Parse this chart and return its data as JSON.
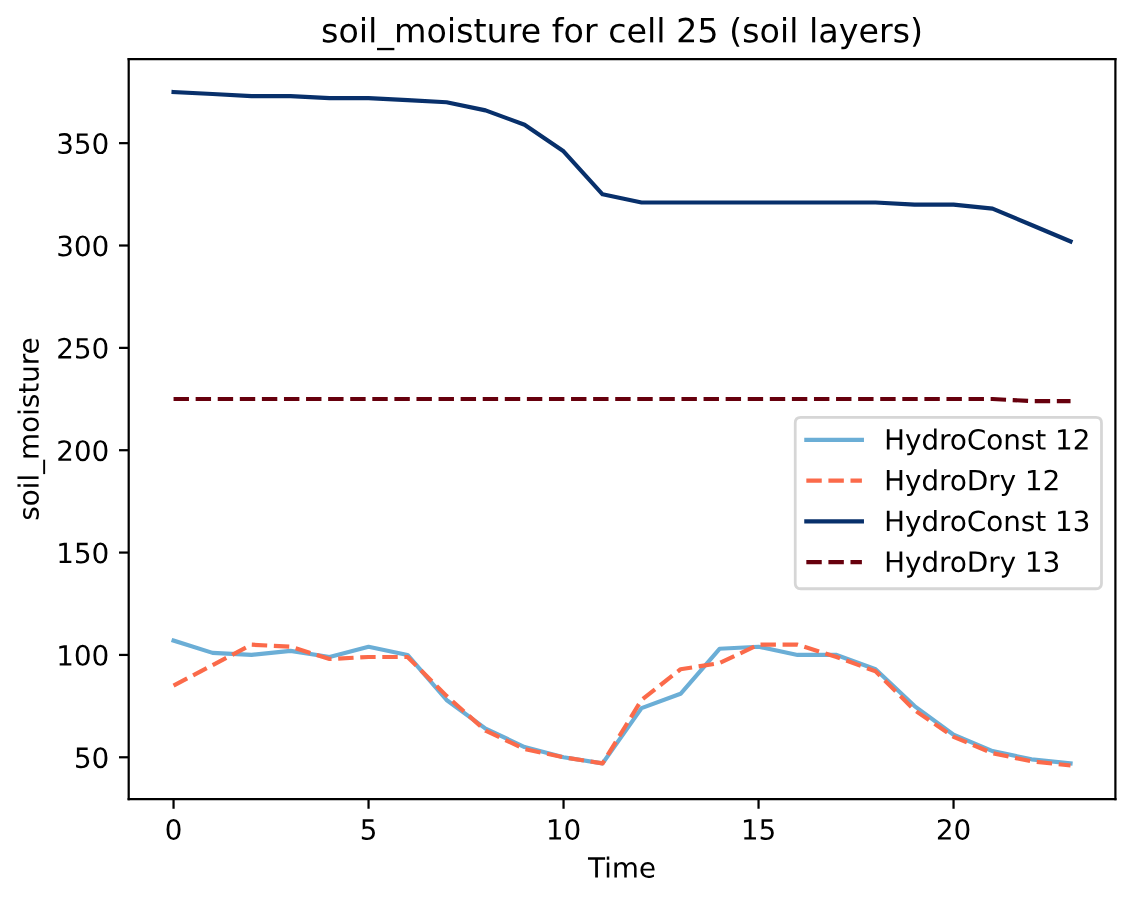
{
  "chart_data": {
    "type": "line",
    "title": "soil_moisture for cell 25 (soil layers)",
    "xlabel": "Time",
    "ylabel": "soil_moisture",
    "x": [
      0,
      1,
      2,
      3,
      4,
      5,
      6,
      7,
      8,
      9,
      10,
      11,
      12,
      13,
      14,
      15,
      16,
      17,
      18,
      19,
      20,
      21,
      22,
      23
    ],
    "series": [
      {
        "name": "HydroConst 12",
        "color": "#6baed6",
        "line_style": "solid",
        "values": [
          107,
          101,
          100,
          102,
          99,
          104,
          100,
          78,
          64,
          55,
          50,
          47,
          74,
          81,
          103,
          104,
          100,
          100,
          93,
          75,
          61,
          53,
          49,
          47
        ]
      },
      {
        "name": "HydroDry 12",
        "color": "#fb6a4a",
        "line_style": "dashed",
        "values": [
          85,
          95,
          105,
          104,
          98,
          99,
          99,
          80,
          63,
          54,
          50,
          47,
          78,
          93,
          96,
          105,
          105,
          99,
          92,
          73,
          60,
          52,
          48,
          46
        ]
      },
      {
        "name": "HydroConst 13",
        "color": "#08306b",
        "line_style": "solid",
        "values": [
          375,
          374,
          373,
          373,
          372,
          372,
          371,
          370,
          366,
          359,
          346,
          325,
          321,
          321,
          321,
          321,
          321,
          321,
          321,
          320,
          320,
          318,
          310,
          302
        ]
      },
      {
        "name": "HydroDry 13",
        "color": "#67000d",
        "line_style": "dashed",
        "values": [
          225,
          225,
          225,
          225,
          225,
          225,
          225,
          225,
          225,
          225,
          225,
          225,
          225,
          225,
          225,
          225,
          225,
          225,
          225,
          225,
          225,
          225,
          224,
          224
        ]
      }
    ],
    "xlim": [
      -1.15,
      24.15
    ],
    "xticks": [
      0,
      5,
      10,
      15,
      20
    ],
    "ylim": [
      29.6,
      391.1
    ],
    "yticks": [
      50,
      100,
      150,
      200,
      250,
      300,
      350
    ],
    "grid": false,
    "legend": "right",
    "marker": "none"
  }
}
